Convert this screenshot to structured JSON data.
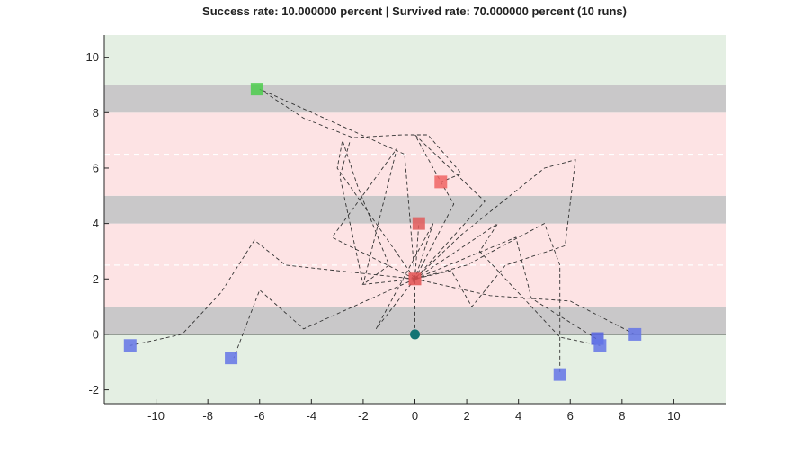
{
  "chart_data": {
    "type": "scatter",
    "title": "Success rate: 10.000000 percent | Survived rate: 70.000000 percent (10 runs)",
    "xlabel": "",
    "ylabel": "",
    "xlim": [
      -12,
      12
    ],
    "ylim": [
      -2.5,
      10.8
    ],
    "x_ticks": [
      "-10",
      "-8",
      "-6",
      "-4",
      "-2",
      "0",
      "2",
      "4",
      "6",
      "8",
      "10"
    ],
    "y_ticks": [
      "-2",
      "0",
      "2",
      "4",
      "6",
      "8",
      "10"
    ],
    "x_tick_values": [
      -10,
      -8,
      -6,
      -4,
      -2,
      0,
      2,
      4,
      6,
      8,
      10
    ],
    "y_tick_values": [
      -2,
      0,
      2,
      4,
      6,
      8,
      10
    ],
    "grid": false,
    "bands": [
      {
        "from": -2.5,
        "to": 0,
        "kind": "safe",
        "color": "#e4efe3"
      },
      {
        "from": 0,
        "to": 1,
        "kind": "sidewalk",
        "color": "#c9c8c9"
      },
      {
        "from": 1,
        "to": 4,
        "kind": "road",
        "color": "#fde3e4"
      },
      {
        "from": 4,
        "to": 5,
        "kind": "median",
        "color": "#c9c8c9"
      },
      {
        "from": 5,
        "to": 8,
        "kind": "road",
        "color": "#fde3e4"
      },
      {
        "from": 8,
        "to": 9,
        "kind": "sidewalk",
        "color": "#c9c8c9"
      },
      {
        "from": 9,
        "to": 10.8,
        "kind": "goal",
        "color": "#e4efe3"
      }
    ],
    "solid_lines": [
      0,
      9
    ],
    "dashed_lanes": [
      2.5,
      6.5
    ],
    "start": {
      "x": 0,
      "y": 0,
      "color": "#127474"
    },
    "endpoints": [
      {
        "x": -6.1,
        "y": 8.85,
        "status": "success",
        "color": "#4ccc4c"
      },
      {
        "x": 1,
        "y": 5.5,
        "status": "hit",
        "color": "#f06464"
      },
      {
        "x": 0.15,
        "y": 4.0,
        "status": "hit",
        "color": "#e05a5a"
      },
      {
        "x": 0,
        "y": 2.0,
        "status": "hit",
        "color": "#e05050"
      },
      {
        "x": -11,
        "y": -0.4,
        "status": "survived",
        "color": "#6474e6"
      },
      {
        "x": -7.1,
        "y": -0.85,
        "status": "survived",
        "color": "#6474e6"
      },
      {
        "x": 5.6,
        "y": -1.45,
        "status": "survived",
        "color": "#6474e6"
      },
      {
        "x": 7.05,
        "y": -0.15,
        "status": "survived",
        "color": "#5462e0"
      },
      {
        "x": 7.15,
        "y": -0.4,
        "status": "survived",
        "color": "#6474e6"
      },
      {
        "x": 8.5,
        "y": 0.0,
        "status": "survived",
        "color": "#6474e6"
      }
    ],
    "paths": [
      [
        [
          0,
          0
        ],
        [
          0,
          2
        ],
        [
          -1.5,
          4
        ],
        [
          -3,
          6
        ],
        [
          -2.8,
          7
        ],
        [
          -2.2,
          5.3
        ],
        [
          -1,
          2.5
        ],
        [
          -2,
          1.8
        ],
        [
          0,
          2
        ]
      ],
      [
        [
          0,
          2
        ],
        [
          -4.3,
          0.2
        ],
        [
          -6,
          1.6
        ],
        [
          -7,
          -0.85
        ]
      ],
      [
        [
          0,
          2
        ],
        [
          -5,
          2.5
        ],
        [
          -6.2,
          3.4
        ],
        [
          -7.5,
          1.5
        ],
        [
          -9,
          0
        ],
        [
          -11,
          -0.4
        ]
      ],
      [
        [
          0,
          2
        ],
        [
          -3.2,
          3.5
        ],
        [
          -0.7,
          6.7
        ],
        [
          -2,
          1.8
        ],
        [
          -2.9,
          5.7
        ],
        [
          -2.5,
          7
        ]
      ],
      [
        [
          0,
          2
        ],
        [
          -1.5,
          0.2
        ],
        [
          0.7,
          4
        ],
        [
          0,
          2
        ]
      ],
      [
        [
          0,
          2
        ],
        [
          1.8,
          3.6
        ],
        [
          5,
          6
        ],
        [
          6.2,
          6.3
        ],
        [
          5.8,
          3.2
        ],
        [
          3.5,
          2.5
        ],
        [
          2.2,
          1
        ],
        [
          1.4,
          2.3
        ],
        [
          0,
          2
        ]
      ],
      [
        [
          0,
          2
        ],
        [
          1.5,
          4.7
        ],
        [
          1,
          5.5
        ],
        [
          0,
          7.2
        ],
        [
          2.7,
          4.8
        ],
        [
          0,
          2
        ]
      ],
      [
        [
          0,
          2
        ],
        [
          3.9,
          3.5
        ],
        [
          4.5,
          1.3
        ],
        [
          7,
          -0.15
        ]
      ],
      [
        [
          0,
          2
        ],
        [
          2,
          2.5
        ],
        [
          5,
          4
        ],
        [
          5.6,
          2.5
        ],
        [
          5.6,
          -1.45
        ]
      ],
      [
        [
          0,
          2
        ],
        [
          2.9,
          1.4
        ],
        [
          6,
          1.2
        ],
        [
          8.5,
          0
        ]
      ],
      [
        [
          0,
          2
        ],
        [
          3.2,
          4
        ],
        [
          2.5,
          3
        ],
        [
          5.6,
          -0.1
        ],
        [
          7.15,
          -0.4
        ]
      ],
      [
        [
          0,
          2
        ],
        [
          -0.4,
          6.5
        ],
        [
          -6,
          8.85
        ]
      ],
      [
        [
          -6,
          8.85
        ],
        [
          -4.3,
          7.8
        ],
        [
          -2.4,
          7.1
        ],
        [
          -0.5,
          7.2
        ],
        [
          0.5,
          7.2
        ],
        [
          1.8,
          5.8
        ],
        [
          1,
          5.5
        ]
      ],
      [
        [
          0,
          2
        ],
        [
          0.15,
          4.0
        ]
      ]
    ]
  }
}
